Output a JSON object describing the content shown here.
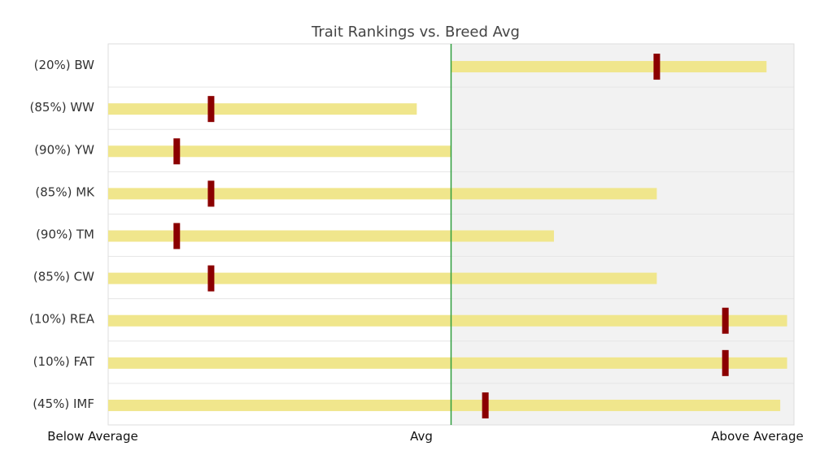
{
  "chart_data": {
    "type": "bar",
    "title": "Trait Rankings vs. Breed Avg",
    "x_axis_labels": {
      "left": "Below Average",
      "center": "Avg",
      "right": "Above Average"
    },
    "scale": [
      0,
      100
    ],
    "average_line": 50,
    "categories": [
      "(20%) BW",
      "(85%) WW",
      "(90%) YW",
      "(85%) MK",
      "(90%) TM",
      "(85%) CW",
      "(10%) REA",
      "(10%) FAT",
      "(45%) IMF"
    ],
    "bar_ranges": [
      [
        50,
        96
      ],
      [
        0,
        45
      ],
      [
        0,
        50
      ],
      [
        0,
        80
      ],
      [
        0,
        65
      ],
      [
        0,
        80
      ],
      [
        0,
        99
      ],
      [
        0,
        99
      ],
      [
        0,
        98
      ]
    ],
    "markers": [
      80,
      15,
      10,
      15,
      10,
      15,
      90,
      90,
      55
    ],
    "colors": {
      "bar": "#f0e68c",
      "marker": "#8b0000",
      "average_line": "#2e9e3e",
      "right_panel": "#f2f2f2"
    },
    "grid": true
  }
}
